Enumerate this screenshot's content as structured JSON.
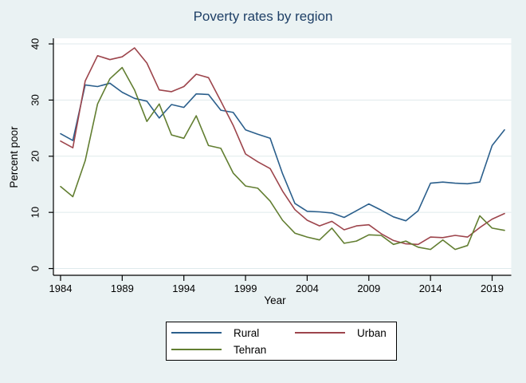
{
  "title": "Poverty rates by region",
  "axes": {
    "x_label": "Year",
    "y_label": "Percent poor"
  },
  "chart_data": {
    "type": "line",
    "title": "Poverty rates by region",
    "xlabel": "Year",
    "ylabel": "Percent poor",
    "x": [
      1984,
      1985,
      1986,
      1987,
      1988,
      1989,
      1990,
      1991,
      1992,
      1993,
      1994,
      1995,
      1996,
      1997,
      1998,
      1999,
      2000,
      2001,
      2002,
      2003,
      2004,
      2005,
      2006,
      2007,
      2008,
      2009,
      2010,
      2011,
      2012,
      2013,
      2014,
      2015,
      2016,
      2017,
      2018,
      2019,
      2020
    ],
    "series": [
      {
        "name": "Rural",
        "color": "#2b5f8c",
        "values": [
          24.0,
          22.8,
          32.7,
          32.4,
          33.0,
          31.4,
          30.3,
          29.8,
          26.8,
          29.2,
          28.7,
          31.1,
          31.0,
          28.2,
          27.8,
          24.7,
          23.9,
          23.2,
          16.9,
          11.6,
          10.2,
          10.1,
          9.9,
          9.1,
          10.3,
          11.5,
          10.4,
          9.2,
          8.5,
          10.3,
          15.2,
          15.4,
          15.2,
          15.1,
          15.4,
          21.9,
          24.7
        ]
      },
      {
        "name": "Urban",
        "color": "#9d454c",
        "values": [
          22.7,
          21.5,
          33.4,
          37.9,
          37.2,
          37.7,
          39.3,
          36.6,
          31.8,
          31.5,
          32.4,
          34.6,
          34.0,
          29.8,
          25.5,
          20.4,
          19.0,
          17.8,
          13.8,
          10.5,
          8.6,
          7.6,
          8.4,
          6.9,
          7.6,
          7.8,
          6.2,
          5.0,
          4.4,
          4.3,
          5.6,
          5.5,
          5.9,
          5.6,
          7.3,
          8.8,
          9.8
        ]
      },
      {
        "name": "Tehran",
        "color": "#627e31",
        "values": [
          14.6,
          12.8,
          19.2,
          29.3,
          33.8,
          35.8,
          31.8,
          26.2,
          29.3,
          23.8,
          23.2,
          27.2,
          21.9,
          21.4,
          17.0,
          14.7,
          14.3,
          12.0,
          8.6,
          6.3,
          5.6,
          5.1,
          7.2,
          4.5,
          4.9,
          6.0,
          5.9,
          4.3,
          4.9,
          3.8,
          3.4,
          5.1,
          3.4,
          4.1,
          9.4,
          7.2,
          6.8
        ]
      }
    ],
    "x_ticks": [
      1984,
      1989,
      1994,
      1999,
      2004,
      2009,
      2014,
      2019
    ],
    "y_ticks": [
      0,
      10,
      20,
      30,
      40
    ],
    "xlim": [
      1983.42,
      2020.55
    ],
    "ylim": [
      -1.2,
      41.0
    ],
    "grid": "horizontal",
    "legend_position": "bottom",
    "background": "#eaf2f3",
    "plot_background": "#ffffff",
    "grid_color": "#dfeaec",
    "title_color": "#1e3f66"
  }
}
